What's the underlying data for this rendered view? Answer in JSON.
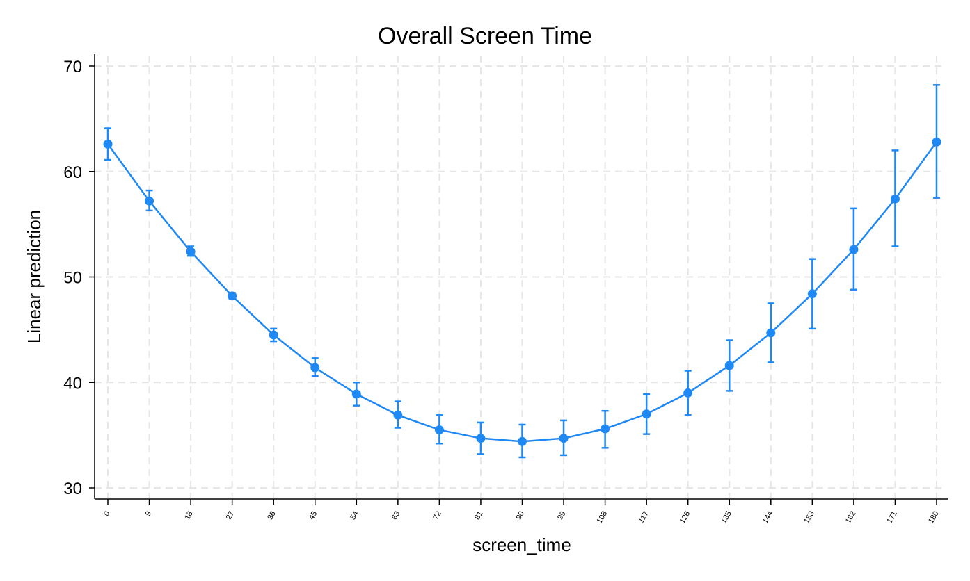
{
  "chart_data": {
    "type": "line",
    "title": "Overall Screen Time",
    "xlabel": "screen_time",
    "ylabel": "Linear prediction",
    "xlim": [
      0,
      180
    ],
    "ylim": [
      30,
      70
    ],
    "x_ticks": [
      "0",
      "9",
      "18",
      "27",
      "36",
      "45",
      "54",
      "63",
      "72",
      "81",
      "90",
      "99",
      "108",
      "117",
      "126",
      "135",
      "144",
      "153",
      "162",
      "171",
      "180"
    ],
    "y_ticks": [
      "30",
      "40",
      "50",
      "60",
      "70"
    ],
    "grid": true,
    "series_color": "#1E88F5",
    "points": [
      {
        "x": 0,
        "y": 62.6,
        "lo": 61.1,
        "hi": 64.1
      },
      {
        "x": 9,
        "y": 57.2,
        "lo": 56.3,
        "hi": 58.2
      },
      {
        "x": 18,
        "y": 52.4,
        "lo": 52.0,
        "hi": 52.9
      },
      {
        "x": 27,
        "y": 48.2,
        "lo": 47.9,
        "hi": 48.5
      },
      {
        "x": 36,
        "y": 44.5,
        "lo": 43.9,
        "hi": 45.1
      },
      {
        "x": 45,
        "y": 41.4,
        "lo": 40.6,
        "hi": 42.3
      },
      {
        "x": 54,
        "y": 38.9,
        "lo": 37.8,
        "hi": 40.0
      },
      {
        "x": 63,
        "y": 36.9,
        "lo": 35.7,
        "hi": 38.2
      },
      {
        "x": 72,
        "y": 35.5,
        "lo": 34.2,
        "hi": 36.9
      },
      {
        "x": 81,
        "y": 34.7,
        "lo": 33.2,
        "hi": 36.2
      },
      {
        "x": 90,
        "y": 34.4,
        "lo": 32.9,
        "hi": 36.0
      },
      {
        "x": 99,
        "y": 34.7,
        "lo": 33.1,
        "hi": 36.4
      },
      {
        "x": 108,
        "y": 35.6,
        "lo": 33.8,
        "hi": 37.3
      },
      {
        "x": 117,
        "y": 37.0,
        "lo": 35.1,
        "hi": 38.9
      },
      {
        "x": 126,
        "y": 39.0,
        "lo": 36.9,
        "hi": 41.1
      },
      {
        "x": 135,
        "y": 41.6,
        "lo": 39.2,
        "hi": 44.0
      },
      {
        "x": 144,
        "y": 44.7,
        "lo": 41.9,
        "hi": 47.5
      },
      {
        "x": 153,
        "y": 48.4,
        "lo": 45.1,
        "hi": 51.7
      },
      {
        "x": 162,
        "y": 52.6,
        "lo": 48.8,
        "hi": 56.5
      },
      {
        "x": 171,
        "y": 57.4,
        "lo": 52.9,
        "hi": 62.0
      },
      {
        "x": 180,
        "y": 62.8,
        "lo": 57.5,
        "hi": 68.2
      }
    ]
  }
}
